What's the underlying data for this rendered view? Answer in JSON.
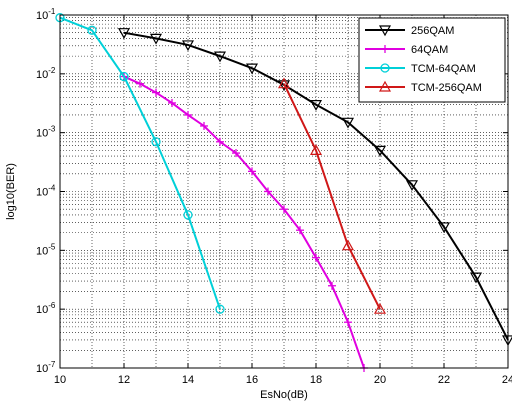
{
  "chart_data": {
    "type": "line",
    "title": "",
    "xlabel": "EsNo(dB)",
    "ylabel": "log10(BER)",
    "xlim": [
      10,
      24
    ],
    "ylim": [
      1e-07,
      0.1
    ],
    "y_scale": "log",
    "grid": true,
    "legend_position": "top-right",
    "x_ticks": [
      "10",
      "12",
      "14",
      "16",
      "18",
      "20",
      "22",
      "24"
    ],
    "y_tick_labels": [
      {
        "base": "10",
        "exp": "-1"
      },
      {
        "base": "10",
        "exp": "-2"
      },
      {
        "base": "10",
        "exp": "-3"
      },
      {
        "base": "10",
        "exp": "-4"
      },
      {
        "base": "10",
        "exp": "-5"
      },
      {
        "base": "10",
        "exp": "-6"
      },
      {
        "base": "10",
        "exp": "-7"
      }
    ],
    "series": [
      {
        "name": "256QAM",
        "color": "#000000",
        "marker": "triangle-down",
        "x": [
          12,
          13,
          14,
          15,
          16,
          17,
          18,
          19,
          20,
          21,
          22,
          23,
          24
        ],
        "y": [
          0.05,
          0.04,
          0.031,
          0.02,
          0.0125,
          0.0065,
          0.003,
          0.0015,
          0.0005,
          0.00013,
          2.5e-05,
          3.5e-06,
          3e-07
        ]
      },
      {
        "name": "64QAM",
        "color": "#e000e0",
        "marker": "plus",
        "x": [
          12,
          12.5,
          13,
          13.5,
          14,
          14.5,
          15,
          15.5,
          16,
          16.5,
          17,
          17.5,
          18,
          18.5,
          19,
          19.5
        ],
        "y": [
          0.009,
          0.0068,
          0.0048,
          0.0032,
          0.002,
          0.0013,
          0.0007,
          0.00045,
          0.00022,
          0.0001,
          5e-05,
          2.2e-05,
          7.5e-06,
          2.5e-06,
          6e-07,
          1e-07
        ]
      },
      {
        "name": "TCM-64QAM",
        "color": "#00d0d8",
        "marker": "circle",
        "x": [
          10,
          11,
          12,
          13,
          14,
          15
        ],
        "y": [
          0.09,
          0.055,
          0.009,
          0.0007,
          4e-05,
          1e-06
        ]
      },
      {
        "name": "TCM-256QAM",
        "color": "#d01818",
        "marker": "triangle-up",
        "x": [
          17,
          18,
          19,
          20
        ],
        "y": [
          0.0068,
          0.0005,
          1.2e-05,
          1e-06
        ]
      }
    ]
  }
}
